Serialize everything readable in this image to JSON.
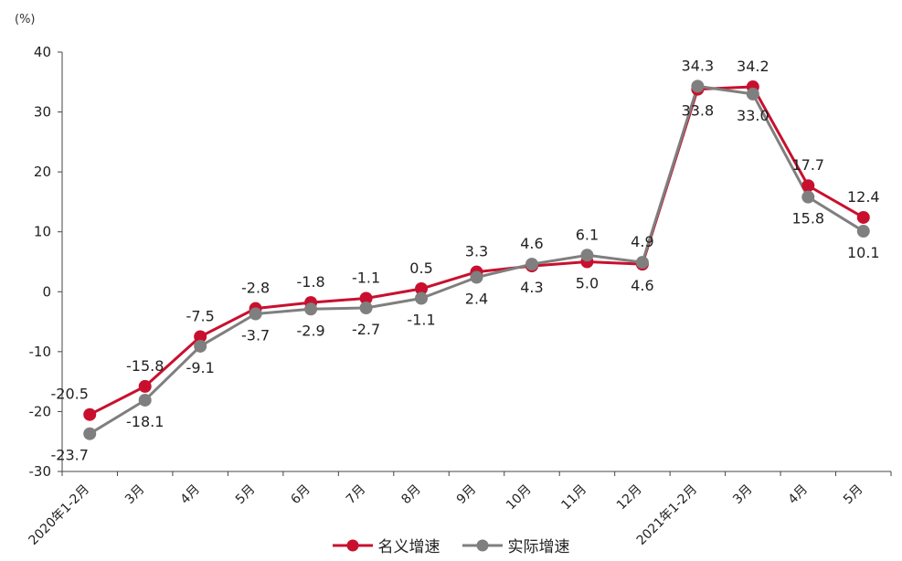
{
  "chart_data": {
    "type": "line",
    "unit_label": "(%)",
    "categories": [
      "2020年1-2月",
      "3月",
      "4月",
      "5月",
      "6月",
      "7月",
      "8月",
      "9月",
      "10月",
      "11月",
      "12月",
      "2021年1-2月",
      "3月",
      "4月",
      "5月"
    ],
    "ylim": [
      -30,
      40
    ],
    "yticks": [
      -30,
      -20,
      -10,
      0,
      10,
      20,
      30,
      40
    ],
    "grid": false,
    "legend_position": "bottom",
    "series": [
      {
        "name": "名义增速",
        "color": "#c8102e",
        "values": [
          -20.5,
          -15.8,
          -7.5,
          -2.8,
          -1.8,
          -1.1,
          0.5,
          3.3,
          4.3,
          5.0,
          4.6,
          33.8,
          34.2,
          17.7,
          12.4
        ],
        "labels": [
          "-20.5",
          "-15.8",
          "-7.5",
          "-2.8",
          "-1.8",
          "-1.1",
          "0.5",
          "3.3",
          "4.3",
          "5.0",
          "4.6",
          "33.8",
          "34.2",
          "17.7",
          "12.4"
        ]
      },
      {
        "name": "实际增速",
        "color": "#7f7f7f",
        "values": [
          -23.7,
          -18.1,
          -9.1,
          -3.7,
          -2.9,
          -2.7,
          -1.1,
          2.4,
          4.6,
          6.1,
          4.9,
          34.3,
          33.0,
          15.8,
          10.1
        ],
        "labels": [
          "-23.7",
          "-18.1",
          "-9.1",
          "-3.7",
          "-2.9",
          "-2.7",
          "-1.1",
          "2.4",
          "4.6",
          "6.1",
          "4.9",
          "34.3",
          "33.0",
          "15.8",
          "10.1"
        ]
      }
    ]
  }
}
